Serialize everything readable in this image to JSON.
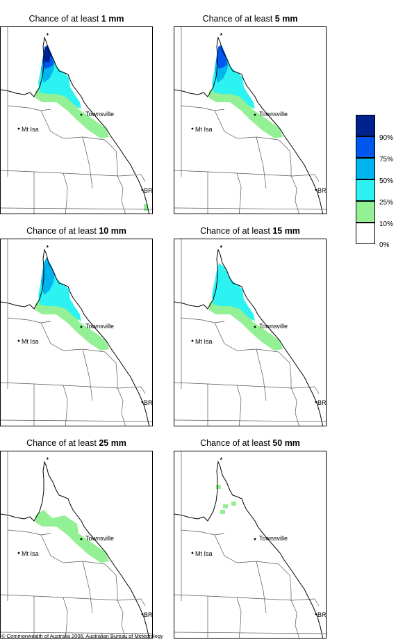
{
  "panels": [
    {
      "title_prefix": "Chance of at least ",
      "amount": "1 mm",
      "level": 5,
      "places": {
        "townsville": "Townsville",
        "mt_isa": "Mt Isa",
        "brisbane": "BRIS"
      }
    },
    {
      "title_prefix": "Chance of at least ",
      "amount": "5 mm",
      "level": 4,
      "places": {
        "townsville": "Townsville",
        "mt_isa": "Mt Isa",
        "brisbane": "BRIS"
      }
    },
    {
      "title_prefix": "Chance of at least ",
      "amount": "10 mm",
      "level": 3,
      "places": {
        "townsville": "Townsville",
        "mt_isa": "Mt Isa",
        "brisbane": "BRIS"
      }
    },
    {
      "title_prefix": "Chance of at least ",
      "amount": "15 mm",
      "level": 2,
      "places": {
        "townsville": "Townsville",
        "mt_isa": "Mt Isa",
        "brisbane": "BRIS"
      }
    },
    {
      "title_prefix": "Chance of at least ",
      "amount": "25 mm",
      "level": 1,
      "places": {
        "townsville": "Townsville",
        "mt_isa": "Mt Isa",
        "brisbane": "BRIS"
      }
    },
    {
      "title_prefix": "Chance of at least ",
      "amount": "50 mm",
      "level": 0,
      "places": {
        "townsville": "Townsville",
        "mt_isa": "Mt Isa",
        "brisbane": "BRIS"
      }
    }
  ],
  "legend": {
    "labels": [
      "90%",
      "75%",
      "50%",
      "25%",
      "10%",
      "0%"
    ],
    "colors": [
      "#00228e",
      "#0057ee",
      "#00b4ee",
      "#2cf2f2",
      "#94f094",
      "#ffffff"
    ]
  },
  "footer": "© Commonwealth of Australia 2006, Australian Bureau of Meteorology"
}
